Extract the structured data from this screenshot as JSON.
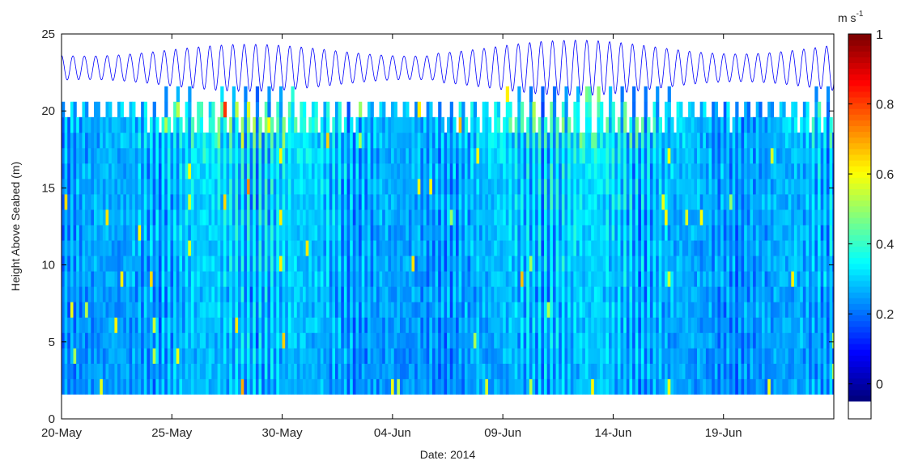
{
  "chart_data": {
    "type": "heatmap",
    "title": "",
    "xlabel": "Date: 2014",
    "ylabel": "Height Above Seabed (m)",
    "x_tick_labels": [
      "20-May",
      "25-May",
      "30-May",
      "04-Jun",
      "09-Jun",
      "14-Jun",
      "19-Jun"
    ],
    "x_tick_days": [
      0,
      5,
      10,
      15,
      20,
      25,
      30
    ],
    "x_range_days": [
      0,
      35
    ],
    "ylim": [
      0,
      25
    ],
    "y_ticks": [
      0,
      5,
      10,
      15,
      20,
      25
    ],
    "colorbar": {
      "unit_label": "m s",
      "unit_exponent": "-1",
      "range": [
        -0.1,
        1
      ],
      "ticks": [
        0,
        0.2,
        0.4,
        0.6,
        0.8,
        1
      ],
      "colormap": "jet"
    },
    "heatmap": {
      "bin_bottom_m": 1.6,
      "bin_size_m": 1.0,
      "profile_interval_hours": 3.2,
      "cell_values_description": "current speed per bin, mostly 0.1–0.4 m/s with pulses to ~0.9 m/s near surface during spring tides"
    },
    "series": [
      {
        "type": "line",
        "color": "#0000ff",
        "semi_diurnal_period_hours": 12.42,
        "mean_depth_m": 22.8,
        "neap_range_m": 1.8,
        "spring_range_m": 3.6,
        "spring_peak_days": [
          8.5,
          25.5
        ],
        "neap_days": [
          1.5,
          17.0
        ]
      }
    ],
    "grid": false
  }
}
